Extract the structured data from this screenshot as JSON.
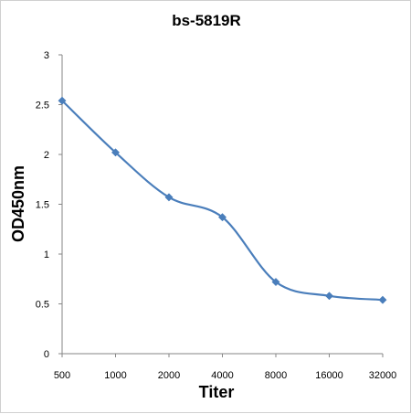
{
  "chart_data": {
    "type": "line",
    "title": "bs-5819R",
    "xlabel": "Titer",
    "ylabel": "OD450nm",
    "categories": [
      "500",
      "1000",
      "2000",
      "4000",
      "8000",
      "16000",
      "32000"
    ],
    "series": [
      {
        "values": [
          2.54,
          2.02,
          1.57,
          1.37,
          0.72,
          0.58,
          0.54
        ],
        "color": "#4a7ebb"
      }
    ],
    "ylim": [
      0,
      3
    ],
    "yticks": [
      0,
      0.5,
      1,
      1.5,
      2,
      2.5,
      3
    ],
    "grid": false,
    "legend": "none",
    "smooth": true,
    "marker": "diamond"
  }
}
